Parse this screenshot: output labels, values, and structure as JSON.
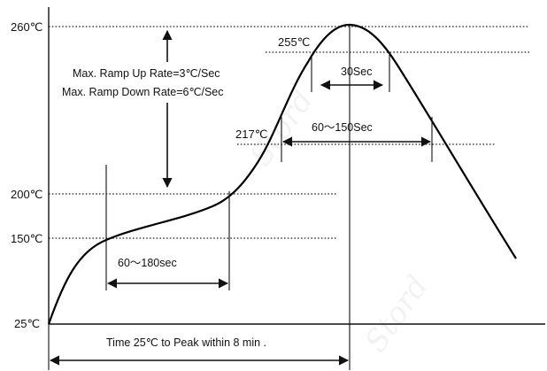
{
  "temperatures": {
    "peak": "260℃",
    "t255": "255℃",
    "t217": "217℃",
    "t200": "200℃",
    "t150": "150℃",
    "t25": "25℃"
  },
  "annotations": {
    "ramp_up": "Max. Ramp Up Rate=3℃/Sec",
    "ramp_down": "Max. Ramp Down Rate=6℃/Sec",
    "peak_window": "30Sec",
    "liquidus_window": "60～150Sec",
    "preheat_window": "60～180sec",
    "time_to_peak": "Time 25℃ to Peak  within 8 min ."
  }
}
